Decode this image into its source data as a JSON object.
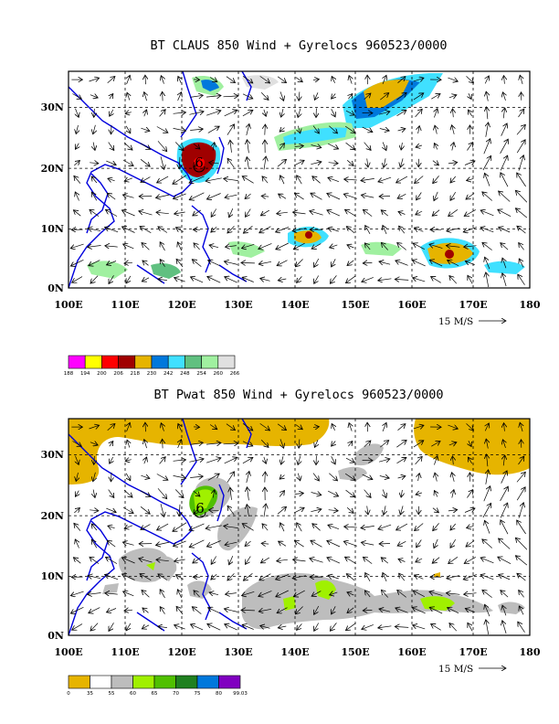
{
  "figure": {
    "panels": [
      {
        "title": "BT CLAUS 850 Wind + Gyrelocs 960523/0000",
        "lat_labels": [
          "30N",
          "20N",
          "10N",
          "0N"
        ],
        "lon_labels": [
          "100E",
          "110E",
          "120E",
          "130E",
          "140E",
          "150E",
          "160E",
          "170E",
          "180"
        ],
        "vector_scale_label": "15 M/S",
        "cyclone_symbol": "6",
        "colorbar": {
          "colors": [
            "#ff00ff",
            "#ffff00",
            "#ff0000",
            "#a00000",
            "#e6b400",
            "#0078dc",
            "#40e0ff",
            "#60c080",
            "#a0f0a0",
            "#e0e0e0"
          ],
          "labels": [
            "188",
            "194",
            "200",
            "206",
            "218",
            "230",
            "242",
            "248",
            "254",
            "260",
            "266"
          ]
        }
      },
      {
        "title": "BT Pwat 850 Wind + Gyrelocs 960523/0000",
        "lat_labels": [
          "30N",
          "20N",
          "10N",
          "0N"
        ],
        "lon_labels": [
          "100E",
          "110E",
          "120E",
          "130E",
          "140E",
          "150E",
          "160E",
          "170E",
          "180"
        ],
        "vector_scale_label": "15 M/S",
        "cyclone_symbol": "6",
        "colorbar": {
          "colors": [
            "#e6b400",
            "#ffffff",
            "#bdbdbd",
            "#a0f000",
            "#50c000",
            "#208020",
            "#0078dc",
            "#8000c0"
          ],
          "labels": [
            "0",
            "35",
            "55",
            "60",
            "65",
            "70",
            "75",
            "80",
            "99.03"
          ]
        }
      }
    ]
  }
}
